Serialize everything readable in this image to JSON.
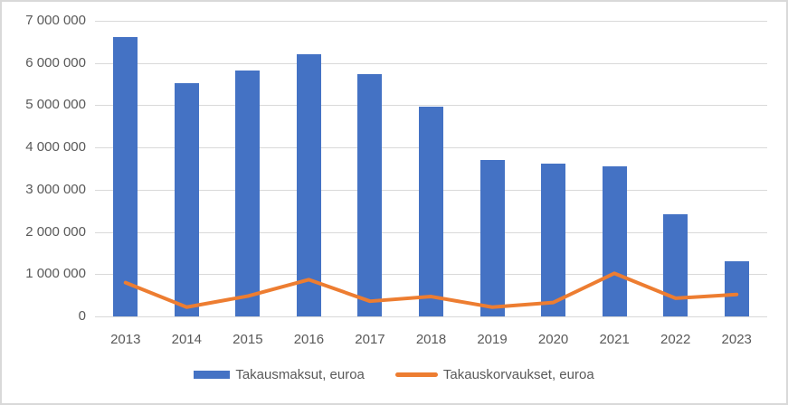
{
  "chart_data": {
    "type": "bar",
    "categories": [
      "2013",
      "2014",
      "2015",
      "2016",
      "2017",
      "2018",
      "2019",
      "2020",
      "2021",
      "2022",
      "2023"
    ],
    "series": [
      {
        "name": "Takausmaksut, euroa",
        "type": "bar",
        "color": "#4472C4",
        "values": [
          6620000,
          5530000,
          5830000,
          6210000,
          5730000,
          4970000,
          3710000,
          3620000,
          3560000,
          2410000,
          1310000
        ]
      },
      {
        "name": "Takauskorvaukset, euroa",
        "type": "line",
        "color": "#ED7D31",
        "values": [
          800000,
          220000,
          480000,
          870000,
          360000,
          470000,
          220000,
          330000,
          1020000,
          430000,
          520000
        ]
      }
    ],
    "title": "",
    "xlabel": "",
    "ylabel": "",
    "ylim": [
      0,
      7000000
    ],
    "ytick_values": [
      0,
      1000000,
      2000000,
      3000000,
      4000000,
      5000000,
      6000000,
      7000000
    ],
    "ytick_labels": [
      "0",
      "1 000 000",
      "2 000 000",
      "3 000 000",
      "4 000 000",
      "5 000 000",
      "6 000 000",
      "7 000 000"
    ],
    "grid": true,
    "legend_position": "bottom"
  },
  "colors": {
    "bar": "#4472C4",
    "line": "#ED7D31",
    "gridline": "#D9D9D9",
    "axis_text": "#595959",
    "border": "#D9D9D9",
    "background": "#FFFFFF"
  },
  "legend": {
    "items": [
      {
        "label": "Takausmaksut, euroa"
      },
      {
        "label": "Takauskorvaukset, euroa"
      }
    ]
  }
}
